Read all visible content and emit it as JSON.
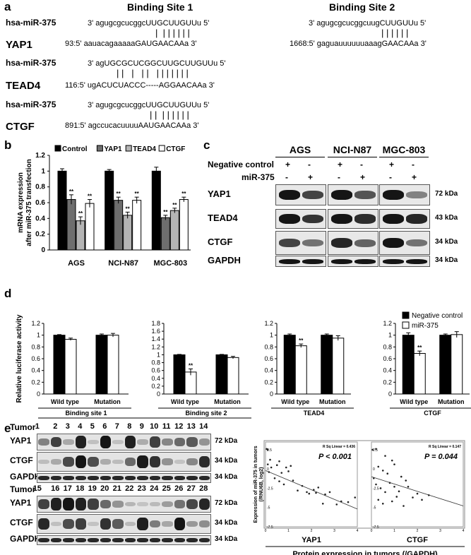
{
  "panel_a": {
    "letter": "a",
    "site1_title": "Binding Site 1",
    "site2_title": "Binding Site 2",
    "rows": [
      {
        "label": "hsa-miR-375",
        "site1": "3' agugcgcucggcUUGCUUGUUu 5'",
        "site2": "3' agugcgcucggcuugCUUGUUu 5'"
      },
      {
        "label": "YAP1",
        "site1": "93:5' aauacagaaaaaGAUGAACAAa 3'",
        "site2": "1668:5' gaguauuuuuuaaagGAACAAa 3'"
      },
      {
        "label": "hsa-miR-375",
        "site1": "3' agUGCGCUCGGCUUGCUUGUUu 5'"
      },
      {
        "label": "TEAD4",
        "site1": "116:5' ugACUCUACCC-----AGGAACAAa 3'"
      },
      {
        "label": "hsa-miR-375",
        "site1": "3' agugcgcucggcUUGCUUGUUu 5'"
      },
      {
        "label": "CTGF",
        "site1": "891:5' agccucacuuuuAAUGAACAAa 3'"
      }
    ]
  },
  "panel_b": {
    "letter": "b",
    "chart_data": {
      "type": "bar",
      "ylabel": "mRNA expression after miR-375 transfection",
      "categories": [
        "AGS",
        "NCI-N87",
        "MGC-803"
      ],
      "series": [
        {
          "name": "Control",
          "values": [
            1.0,
            1.0,
            1.0
          ],
          "errors": [
            0.03,
            0.02,
            0.05
          ],
          "color": "#000000"
        },
        {
          "name": "YAP1",
          "values": [
            0.64,
            0.63,
            0.41
          ],
          "errors": [
            0.06,
            0.04,
            0.03
          ],
          "color": "#6e6e6e"
        },
        {
          "name": "TEAD4",
          "values": [
            0.37,
            0.44,
            0.5
          ],
          "errors": [
            0.05,
            0.04,
            0.03
          ],
          "color": "#b4b4b4"
        },
        {
          "name": "CTGF",
          "values": [
            0.59,
            0.63,
            0.64
          ],
          "errors": [
            0.05,
            0.04,
            0.03
          ],
          "color": "#ffffff"
        }
      ],
      "significance": [
        [
          "",
          "**",
          "**",
          "**"
        ],
        [
          "",
          "**",
          "**",
          "**"
        ],
        [
          "",
          "**",
          "**",
          "**"
        ]
      ],
      "yticks": [
        "0",
        "0.2",
        "0.4",
        "0.6",
        "0.8",
        "1",
        "1.2"
      ],
      "ylim": [
        0,
        1.2
      ]
    }
  },
  "panel_c": {
    "letter": "c",
    "cell_lines": [
      "AGS",
      "NCI-N87",
      "MGC-803"
    ],
    "neg_label": "Negative control",
    "mir_label": "miR-375",
    "neg_signs": [
      "+",
      "-",
      "+",
      "-",
      "+",
      "-"
    ],
    "mir_signs": [
      "-",
      "+",
      "-",
      "+",
      "-",
      "+"
    ],
    "proteins": [
      "YAP1",
      "TEAD4",
      "CTGF",
      "GAPDH"
    ],
    "kda": [
      "72 kDa",
      "43 kDa",
      "34 kDa",
      "34 kDa"
    ]
  },
  "panel_d": {
    "letter": "d",
    "ylabel": "Relative luciferase activity",
    "legend": [
      "Negative control",
      "miR-375"
    ],
    "chart_data": [
      {
        "type": "bar",
        "categories": [
          "Wild type",
          "Mutation"
        ],
        "series": [
          {
            "name": "Negative control",
            "values": [
              1.0,
              1.0
            ]
          },
          {
            "name": "miR-375",
            "values": [
              0.93,
              1.0
            ]
          }
        ],
        "errors": [
          [
            0.01,
            0.02
          ],
          [
            0.02,
            0.03
          ]
        ],
        "sig": [
          "",
          ""
        ],
        "ylim": [
          0,
          1.2
        ],
        "yticks": [
          "0",
          "0.2",
          "0.4",
          "0.6",
          "0.8",
          "1",
          "1.2"
        ],
        "xlabel": "Binding site 1"
      },
      {
        "type": "bar",
        "categories": [
          "Wild type",
          "Mutation"
        ],
        "series": [
          {
            "name": "Negative control",
            "values": [
              1.0,
              1.0
            ]
          },
          {
            "name": "miR-375",
            "values": [
              0.56,
              0.93
            ]
          }
        ],
        "errors": [
          [
            0.01,
            0.08
          ],
          [
            0.01,
            0.03
          ]
        ],
        "sig": [
          "**",
          ""
        ],
        "ylim": [
          0,
          1.8
        ],
        "yticks": [
          "0",
          "0.2",
          "0.4",
          "0.6",
          "0.8",
          "1",
          "1.2",
          "1.4",
          "1.6",
          "1.8"
        ],
        "xlabel": "Binding site 2"
      },
      {
        "type": "bar",
        "categories": [
          "Wild type",
          "Mutation"
        ],
        "series": [
          {
            "name": "Negative control",
            "values": [
              1.0,
              1.0
            ]
          },
          {
            "name": "miR-375",
            "values": [
              0.82,
              0.95
            ]
          }
        ],
        "errors": [
          [
            0.02,
            0.03
          ],
          [
            0.02,
            0.04
          ]
        ],
        "sig": [
          "**",
          ""
        ],
        "ylim": [
          0,
          1.2
        ],
        "yticks": [
          "0",
          "0.2",
          "0.4",
          "0.6",
          "0.8",
          "1",
          "1.2"
        ],
        "xlabel": "TEAD4"
      },
      {
        "type": "bar",
        "categories": [
          "Wild type",
          "Mutation"
        ],
        "series": [
          {
            "name": "Negative control",
            "values": [
              1.0,
              1.0
            ]
          },
          {
            "name": "miR-375",
            "values": [
              0.69,
              1.01
            ]
          }
        ],
        "errors": [
          [
            0.04,
            0.04
          ],
          [
            0.02,
            0.05
          ]
        ],
        "sig": [
          "**",
          ""
        ],
        "ylim": [
          0,
          1.2
        ],
        "yticks": [
          "0",
          "0.2",
          "0.4",
          "0.6",
          "0.8",
          "1",
          "1.2"
        ],
        "xlabel": "CTGF"
      }
    ],
    "yap1_label": "YAP1"
  },
  "panel_e": {
    "letter": "e",
    "tumor_label": "Tumor",
    "tumors_top": [
      "1",
      "2",
      "3",
      "4",
      "5",
      "6",
      "7",
      "8",
      "9",
      "10",
      "11",
      "12",
      "13",
      "14"
    ],
    "tumors_bottom": [
      "15",
      "16",
      "17",
      "18",
      "19",
      "20",
      "21",
      "22",
      "23",
      "24",
      "25",
      "26",
      "27",
      "28"
    ],
    "proteins": [
      "YAP1",
      "CTGF",
      "GAPDH"
    ],
    "kda": [
      "72 kDa",
      "34 kDa",
      "34 kDa"
    ],
    "scatter": [
      {
        "label": "YAP1",
        "r_sq": "R Sq Linear = 0.436",
        "p": "P < 0.001"
      },
      {
        "label": "CTGF",
        "r_sq": "R Sq Linear = 0.147",
        "p": "P = 0.044"
      }
    ],
    "scatter_ylabel": "Expression of miR-375 in tumors (/RNU6B, log2)",
    "scatter_xlabel": "Protein expression in tumors (/GAPDH)",
    "scatter_yticks": [
      "2.5",
      "0",
      "-2.5",
      "-5",
      "-7.5"
    ],
    "scatter_xticks": [
      "0",
      "1",
      "2",
      "3",
      "4"
    ],
    "chart_data": [
      {
        "type": "scatter",
        "name": "YAP1",
        "xlim": [
          0,
          4
        ],
        "ylim": [
          -7.5,
          3.5
        ],
        "points": [
          [
            0.05,
            2.6
          ],
          [
            0.1,
            2.5
          ],
          [
            0.2,
            1.2
          ],
          [
            0.1,
            0.6
          ],
          [
            0.25,
            0.2
          ],
          [
            0.15,
            -0.4
          ],
          [
            0.5,
            0.5
          ],
          [
            0.6,
            1.0
          ],
          [
            0.7,
            -0.5
          ],
          [
            0.9,
            0.2
          ],
          [
            1.0,
            -0.3
          ],
          [
            1.1,
            0.4
          ],
          [
            0.4,
            -1.2
          ],
          [
            0.6,
            -1.6
          ],
          [
            0.8,
            -2.0
          ],
          [
            1.2,
            -1.5
          ],
          [
            1.4,
            -2.8
          ],
          [
            1.6,
            -2.2
          ],
          [
            1.8,
            -3.0
          ],
          [
            1.9,
            -3.2
          ],
          [
            2.1,
            -2.7
          ],
          [
            2.2,
            -3.1
          ],
          [
            2.3,
            -2.4
          ],
          [
            2.5,
            -4.5
          ],
          [
            2.6,
            -3.3
          ],
          [
            2.8,
            -3.0
          ],
          [
            3.3,
            -4.2
          ],
          [
            3.1,
            -4.6
          ],
          [
            3.6,
            -4.3
          ],
          [
            3.9,
            -3.7
          ]
        ],
        "fit": [
          [
            0,
            -0.2
          ],
          [
            4,
            -5.2
          ]
        ]
      },
      {
        "type": "scatter",
        "name": "CTGF",
        "xlim": [
          0,
          4
        ],
        "ylim": [
          -7.5,
          3.5
        ],
        "points": [
          [
            0.05,
            2.5
          ],
          [
            0.2,
            2.6
          ],
          [
            0.6,
            1.7
          ],
          [
            0.9,
            1.1
          ],
          [
            1.0,
            0.6
          ],
          [
            0.3,
            0.3
          ],
          [
            0.5,
            -0.2
          ],
          [
            0.7,
            -0.6
          ],
          [
            0.1,
            -1.2
          ],
          [
            0.2,
            -2.0
          ],
          [
            0.4,
            -2.5
          ],
          [
            0.6,
            -3.0
          ],
          [
            0.8,
            -1.8
          ],
          [
            1.0,
            -2.3
          ],
          [
            1.2,
            -2.9
          ],
          [
            1.3,
            -1.0
          ],
          [
            1.5,
            -1.5
          ],
          [
            1.1,
            -3.6
          ],
          [
            0.9,
            -4.2
          ],
          [
            1.6,
            -2.3
          ],
          [
            1.8,
            -3.7
          ],
          [
            2.0,
            -3.2
          ],
          [
            2.2,
            -4.0
          ],
          [
            0.3,
            -4.0
          ],
          [
            0.5,
            -4.5
          ],
          [
            1.4,
            -4.8
          ],
          [
            2.5,
            -3.4
          ]
        ],
        "fit": [
          [
            0,
            -1.0
          ],
          [
            4,
            -4.8
          ]
        ]
      }
    ]
  }
}
